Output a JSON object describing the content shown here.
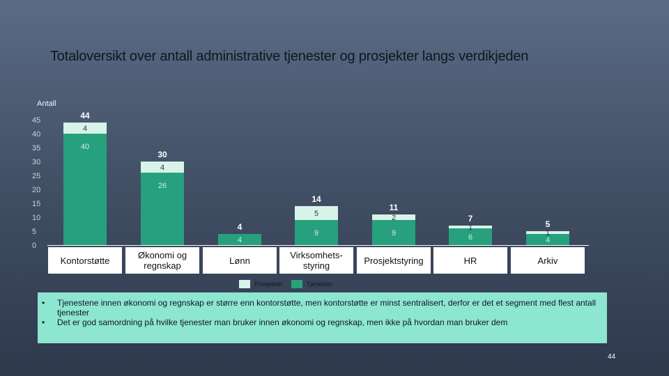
{
  "page": {
    "title": "Totaloversikt over antall administrative tjenester og prosjekter langs verdikjeden",
    "page_number": "44"
  },
  "chart_data": {
    "type": "bar",
    "stacked": true,
    "ylabel": "Antall",
    "ylim": [
      0,
      45
    ],
    "yticks": [
      0,
      5,
      10,
      15,
      20,
      25,
      30,
      35,
      40,
      45
    ],
    "categories": [
      "Kontorstøtte",
      "Økonomi og regnskap",
      "Lønn",
      "Virksomhets-styring",
      "Prosjektstyring",
      "HR",
      "Arkiv"
    ],
    "series": [
      {
        "name": "Tjenester",
        "color": "#27a07d",
        "values": [
          40,
          26,
          4,
          9,
          9,
          6,
          4
        ]
      },
      {
        "name": "Prosjekter",
        "color": "#d8f3ea",
        "values": [
          4,
          4,
          0,
          5,
          2,
          1,
          1
        ]
      }
    ],
    "totals": [
      44,
      30,
      4,
      14,
      11,
      7,
      5
    ],
    "legend": "bottom-center",
    "grid": false
  },
  "notes": [
    "Tjenestene innen økonomi og regnskap er større enn kontorstøtte, men kontorstøtte er minst sentralisert, derfor er det et segment med flest antall tjenester",
    "Det er god samordning på hvilke tjenester man bruker innen økonomi og regnskap, men ikke på hvordan man bruker dem"
  ]
}
